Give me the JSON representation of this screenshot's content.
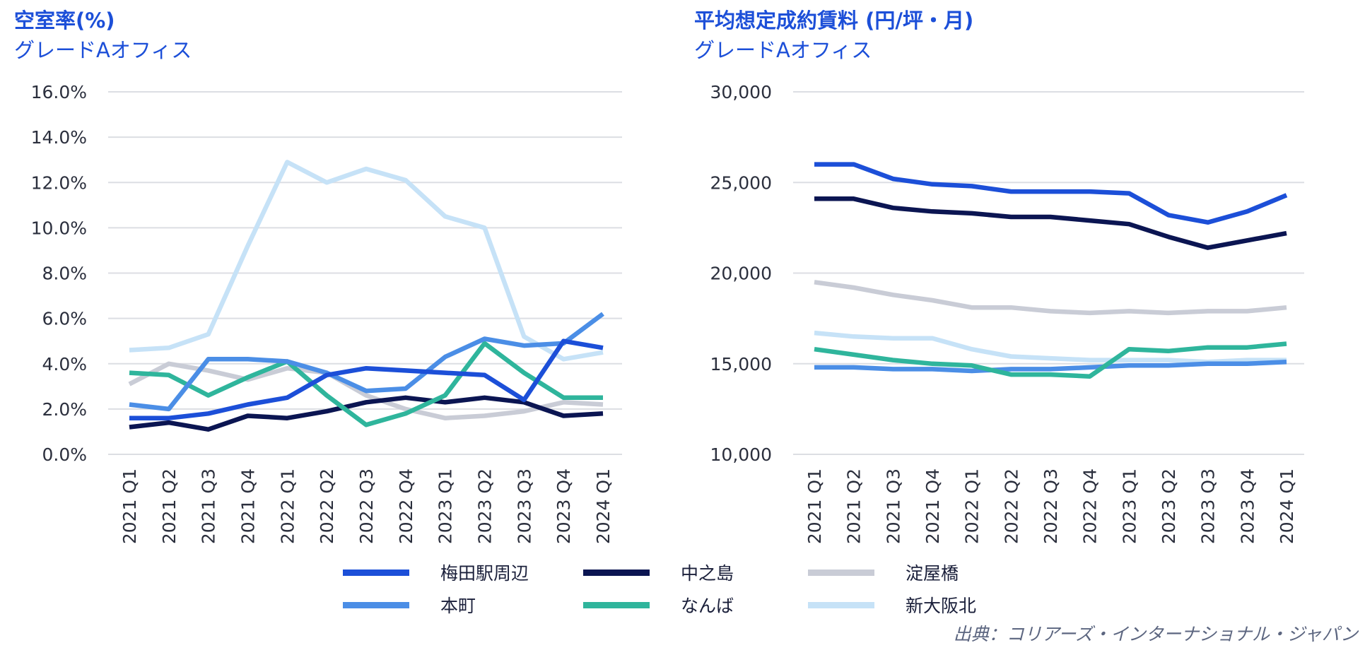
{
  "chart_data": [
    {
      "type": "line",
      "title": "空室率(%)",
      "subtitle": "グレードAオフィス",
      "categories": [
        "2021 Q1",
        "2021 Q2",
        "2021 Q3",
        "2021 Q4",
        "2022 Q1",
        "2022 Q2",
        "2022 Q3",
        "2022 Q4",
        "2023 Q1",
        "2023 Q2",
        "2023 Q3",
        "2023 Q4",
        "2024 Q1"
      ],
      "ylim": [
        0,
        16
      ],
      "yticks": [
        {
          "value": 0,
          "label": "0.0%"
        },
        {
          "value": 2,
          "label": "2.0%"
        },
        {
          "value": 4,
          "label": "4.0%"
        },
        {
          "value": 6,
          "label": "6.0%"
        },
        {
          "value": 8,
          "label": "8.0%"
        },
        {
          "value": 10,
          "label": "10.0%"
        },
        {
          "value": 12,
          "label": "12.0%"
        },
        {
          "value": 14,
          "label": "14.0%"
        },
        {
          "value": 16,
          "label": "16.0%"
        }
      ],
      "grid": true,
      "series": [
        {
          "name": "淀屋橋",
          "color": "#c9ccd6",
          "values": [
            3.1,
            4.0,
            3.7,
            3.3,
            3.8,
            3.6,
            2.6,
            2.0,
            1.6,
            1.7,
            1.9,
            2.3,
            2.2
          ]
        },
        {
          "name": "新大阪北",
          "color": "#c6e2f7",
          "values": [
            4.6,
            4.7,
            5.3,
            9.2,
            12.9,
            12.0,
            12.6,
            12.1,
            10.5,
            10.0,
            5.2,
            4.2,
            4.5
          ]
        },
        {
          "name": "中之島",
          "color": "#0b1552",
          "values": [
            1.2,
            1.4,
            1.1,
            1.7,
            1.6,
            1.9,
            2.3,
            2.5,
            2.3,
            2.5,
            2.3,
            1.7,
            1.8
          ]
        },
        {
          "name": "なんば",
          "color": "#2fb59c",
          "values": [
            3.6,
            3.5,
            2.6,
            3.4,
            4.1,
            2.6,
            1.3,
            1.8,
            2.6,
            4.9,
            3.6,
            2.5,
            2.5
          ]
        },
        {
          "name": "本町",
          "color": "#4b8ee6",
          "values": [
            2.2,
            2.0,
            4.2,
            4.2,
            4.1,
            3.6,
            2.8,
            2.9,
            4.3,
            5.1,
            4.8,
            4.9,
            6.2
          ]
        },
        {
          "name": "梅田駅周辺",
          "color": "#1c4fd8",
          "values": [
            1.6,
            1.6,
            1.8,
            2.2,
            2.5,
            3.5,
            3.8,
            3.7,
            3.6,
            3.5,
            2.4,
            5.0,
            4.7
          ]
        }
      ]
    },
    {
      "type": "line",
      "title": "平均想定成約賃料 (円/坪・月)",
      "subtitle": "グレードAオフィス",
      "categories": [
        "2021 Q1",
        "2021 Q2",
        "2021 Q3",
        "2021 Q4",
        "2022 Q1",
        "2022 Q2",
        "2022 Q3",
        "2022 Q4",
        "2023 Q1",
        "2023 Q2",
        "2023 Q3",
        "2023 Q4",
        "2024 Q1"
      ],
      "ylim": [
        10000,
        30000
      ],
      "yticks": [
        {
          "value": 10000,
          "label": "10,000"
        },
        {
          "value": 15000,
          "label": "15,000"
        },
        {
          "value": 20000,
          "label": "20,000"
        },
        {
          "value": 25000,
          "label": "25,000"
        },
        {
          "value": 30000,
          "label": "30,000"
        }
      ],
      "grid": true,
      "series": [
        {
          "name": "淀屋橋",
          "color": "#c9ccd6",
          "values": [
            19500,
            19200,
            18800,
            18500,
            18100,
            18100,
            17900,
            17800,
            17900,
            17800,
            17900,
            17900,
            18100
          ]
        },
        {
          "name": "新大阪北",
          "color": "#c6e2f7",
          "values": [
            16700,
            16500,
            16400,
            16400,
            15800,
            15400,
            15300,
            15200,
            15200,
            15200,
            15100,
            15200,
            15200
          ]
        },
        {
          "name": "本町",
          "color": "#4b8ee6",
          "values": [
            14800,
            14800,
            14700,
            14700,
            14600,
            14700,
            14700,
            14800,
            14900,
            14900,
            15000,
            15000,
            15100
          ]
        },
        {
          "name": "なんば",
          "color": "#2fb59c",
          "values": [
            15800,
            15500,
            15200,
            15000,
            14900,
            14400,
            14400,
            14300,
            15800,
            15700,
            15900,
            15900,
            16100
          ]
        },
        {
          "name": "中之島",
          "color": "#0b1552",
          "values": [
            24100,
            24100,
            23600,
            23400,
            23300,
            23100,
            23100,
            22900,
            22700,
            22000,
            21400,
            21800,
            22200
          ]
        },
        {
          "name": "梅田駅周辺",
          "color": "#1c4fd8",
          "values": [
            26000,
            26000,
            25200,
            24900,
            24800,
            24500,
            24500,
            24500,
            24400,
            23200,
            22800,
            23400,
            24300
          ]
        }
      ]
    }
  ],
  "legend": [
    {
      "name": "梅田駅周辺",
      "color": "#1c4fd8"
    },
    {
      "name": "中之島",
      "color": "#0b1552"
    },
    {
      "name": "淀屋橋",
      "color": "#c9ccd6"
    },
    {
      "name": "本町",
      "color": "#4b8ee6"
    },
    {
      "name": "なんば",
      "color": "#2fb59c"
    },
    {
      "name": "新大阪北",
      "color": "#c6e2f7"
    }
  ],
  "source": "出典：コリアーズ・インターナショナル・ジャパン"
}
